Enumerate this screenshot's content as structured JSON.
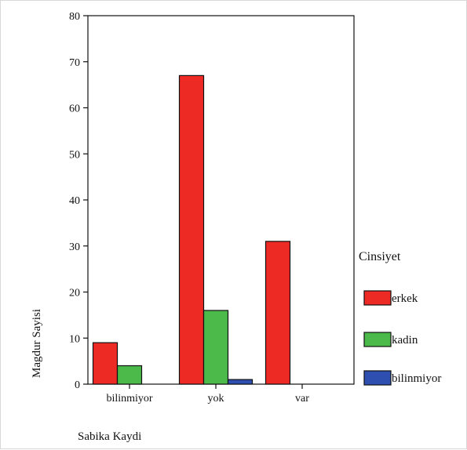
{
  "chart_data": {
    "type": "bar",
    "categories": [
      "bilinmiyor",
      "yok",
      "var"
    ],
    "series": [
      {
        "name": "erkek",
        "color": "#ee2a24",
        "values": [
          9,
          67,
          31
        ]
      },
      {
        "name": "kadin",
        "color": "#4cba4a",
        "values": [
          4,
          16,
          0
        ]
      },
      {
        "name": "bilinmiyor",
        "color": "#2e4fb0",
        "values": [
          0,
          1,
          0
        ]
      }
    ],
    "xlabel": "Sabika Kaydi",
    "ylabel": "Magdur Sayisi",
    "ylim": [
      0,
      80
    ],
    "yticks": [
      "0",
      "10",
      "20",
      "30",
      "40",
      "50",
      "60",
      "70",
      "80"
    ],
    "legend_title": "Cinsiyet",
    "legend_position": "right",
    "grid": false
  }
}
